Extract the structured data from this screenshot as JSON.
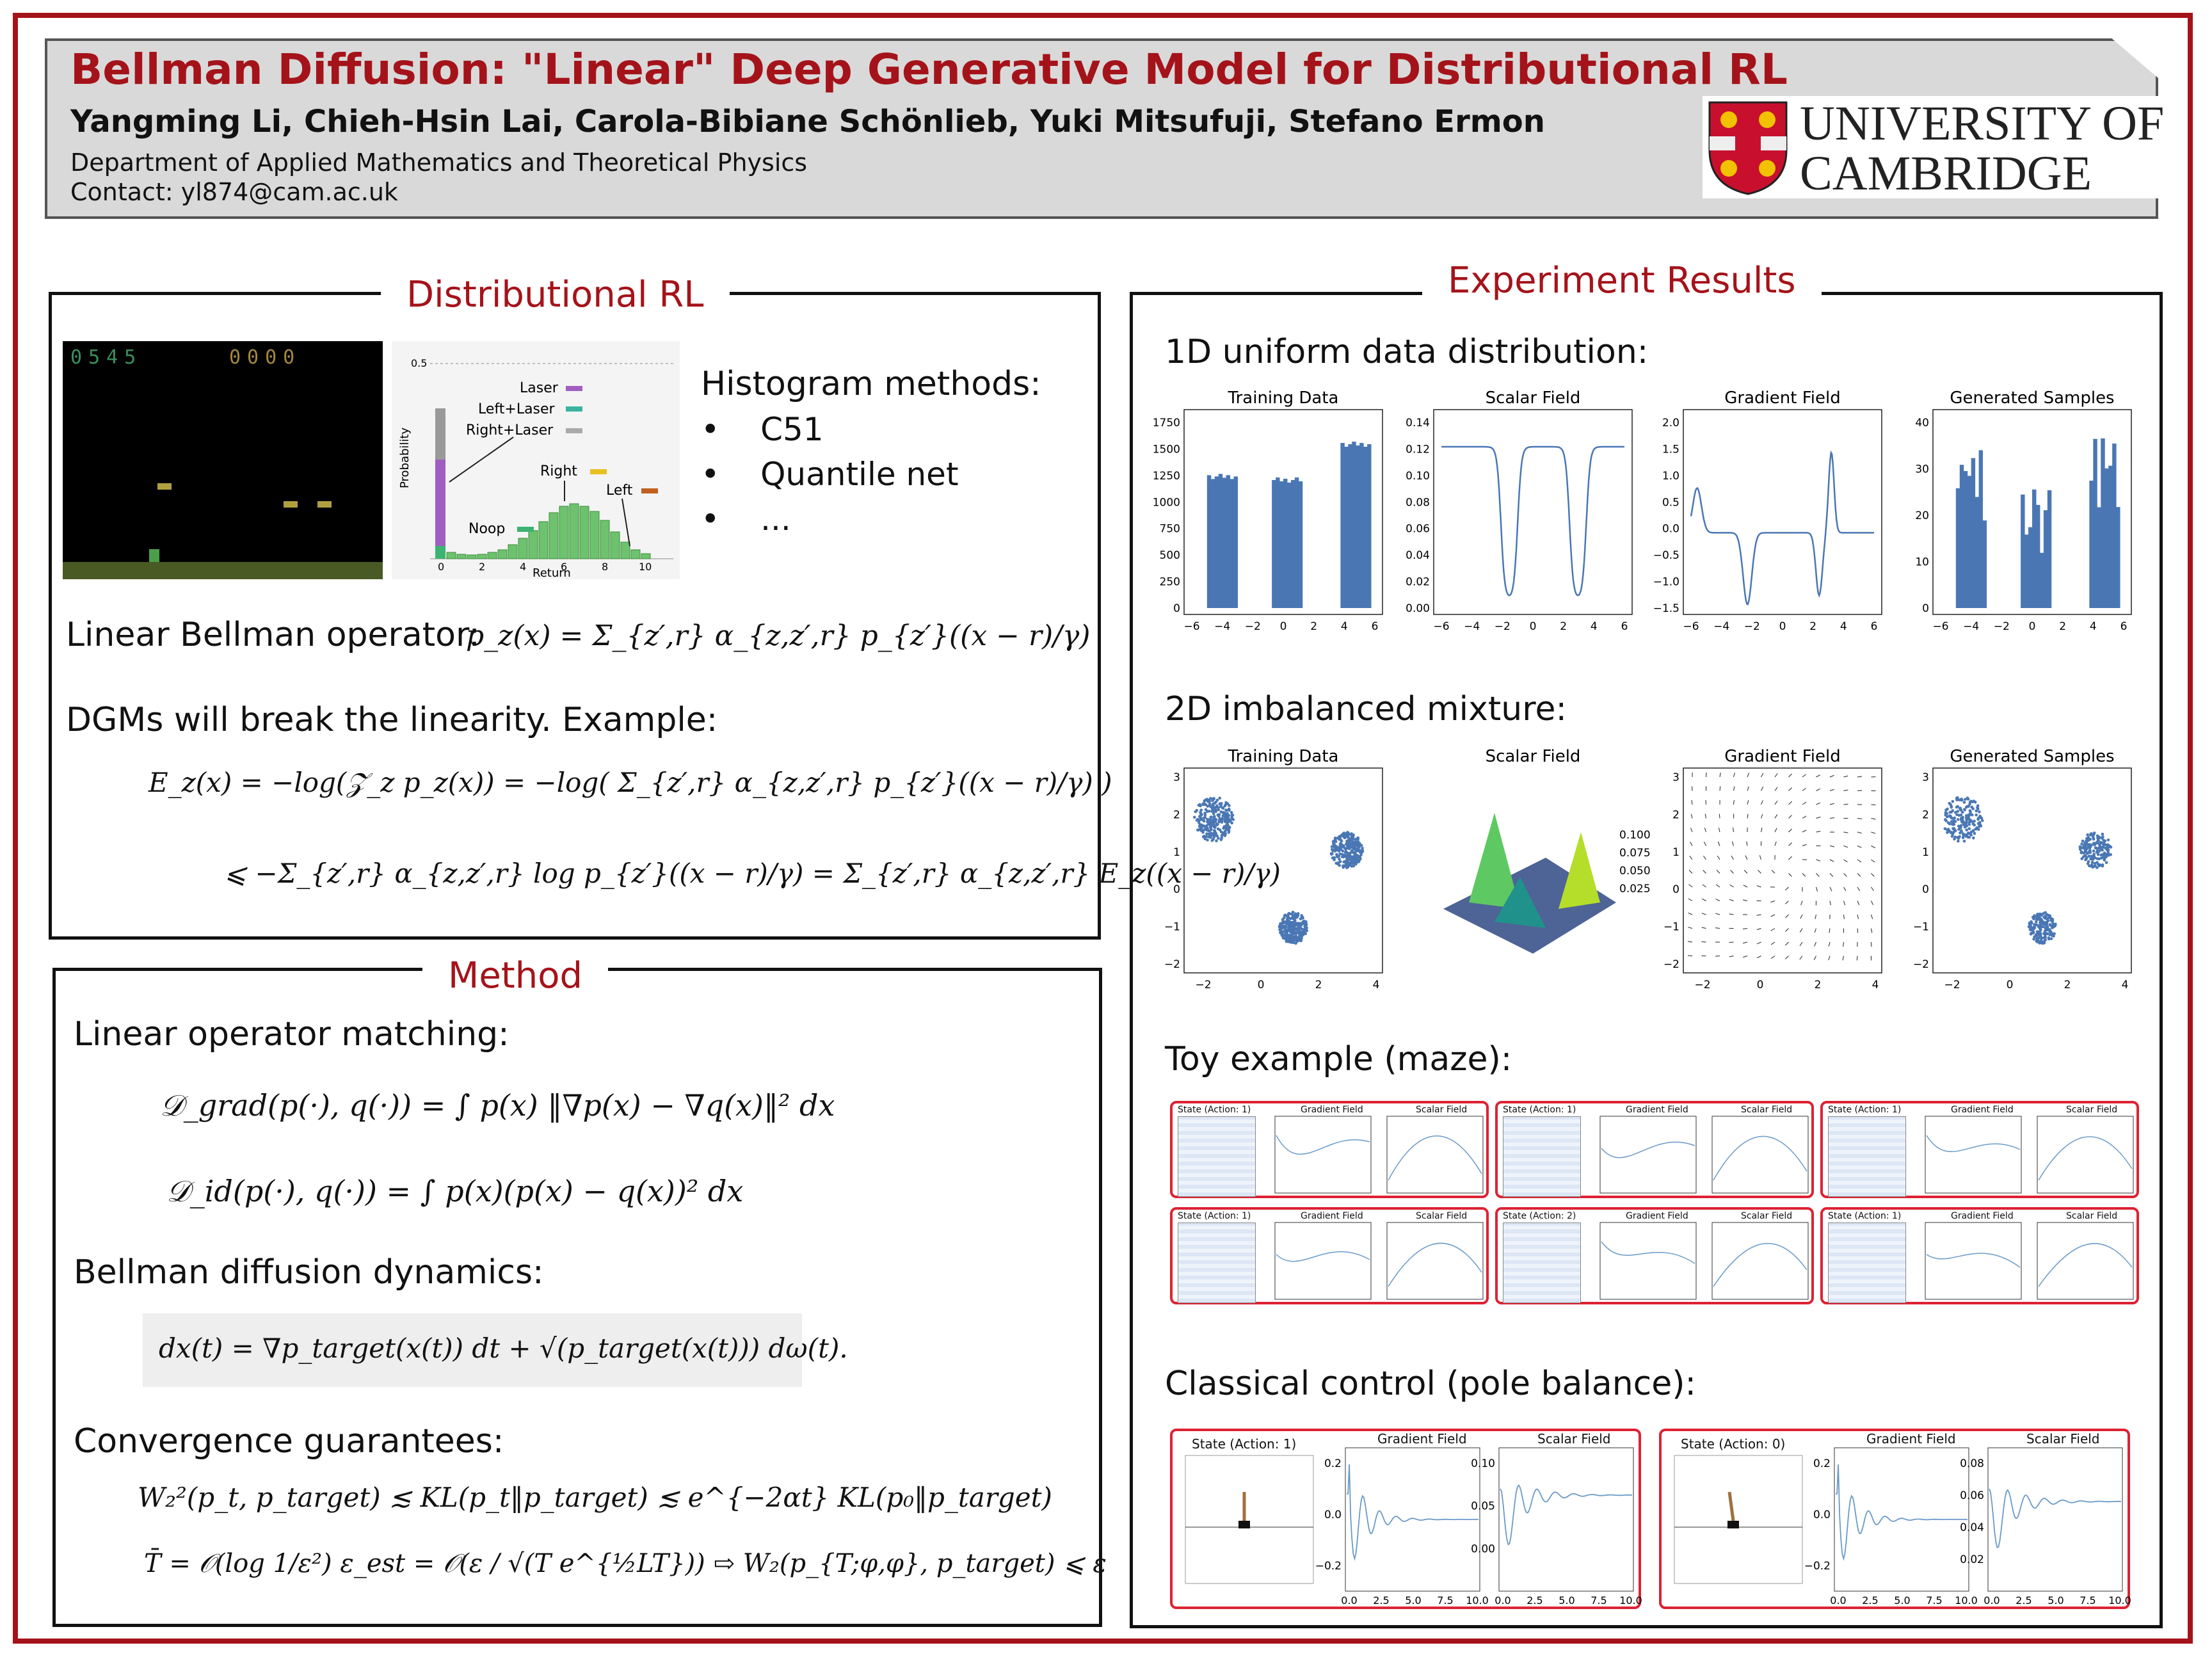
{
  "header": {
    "title": "Bellman Diffusion: \"Linear\" Deep Generative Model for Distributional RL",
    "authors": "Yangming Li, Chieh-Hsin Lai, Carola-Bibiane Schönlieb, Yuki Mitsufuji, Stefano Ermon",
    "department": "Department of Applied Mathematics and Theoretical Physics",
    "contact": "Contact: yl874@cam.ac.uk",
    "logo_line1": "UNIVERSITY OF",
    "logo_line2": "CAMBRIDGE"
  },
  "distributional_rl": {
    "heading": "Distributional RL",
    "game_score_left": "0545",
    "game_score_right": "0000",
    "hist_legend": [
      "Laser",
      "Left+Laser",
      "Right+Laser",
      "Right",
      "Left",
      "Noop"
    ],
    "hist_ylabel": "Probability",
    "hist_xlabel": "Return",
    "hist_ytick": "0.5",
    "hist_xticks": [
      "0",
      "2",
      "4",
      "6",
      "8",
      "10"
    ],
    "histogram_methods_title": "Histogram methods:",
    "bullets": [
      "C51",
      "Quantile net",
      "..."
    ],
    "linear_label": "Linear Bellman operator:",
    "linear_eq": "p_z(x) = Σ_{z′,r} α_{z,z′,r} p_{z′}((x − r)/γ)",
    "dgm_label": "DGMs will break the linearity. Example:",
    "dgm_eq1": "E_z(x) = −log(𝒵_z p_z(x)) = −log( Σ_{z′,r} α_{z,z′,r} p_{z′}((x − r)/γ) )",
    "dgm_eq2": "⩽ −Σ_{z′,r} α_{z,z′,r} log p_{z′}((x − r)/γ) = Σ_{z′,r} α_{z,z′,r} E_z((x − r)/γ)"
  },
  "method": {
    "heading": "Method",
    "op_label": "Linear operator matching:",
    "op_eq1": "𝒟_grad(p(·), q(·)) = ∫ p(x) ‖∇p(x) − ∇q(x)‖² dx",
    "op_eq2": "𝒟_id(p(·), q(·)) = ∫ p(x)(p(x) − q(x))² dx",
    "dyn_label": "Bellman diffusion dynamics:",
    "dyn_eq": "dx(t) = ∇p_target(x(t)) dt + √(p_target(x(t))) dω(t).",
    "conv_label": "Convergence guarantees:",
    "conv_eq1": "W₂²(p_t, p_target) ≲ KL(p_t‖p_target) ≲ e^{−2αt} KL(p₀‖p_target)",
    "conv_eq2": "T̄ = 𝒪(log 1/ε²)  ε_est = 𝒪(ε / √(T e^{½LT}))  ⇨  W₂(p_{T;φ,φ}, p_target) ⩽ ε"
  },
  "experiments": {
    "heading": "Experiment Results",
    "uniform_title": "1D uniform data distribution:",
    "uniform_plots": [
      "Training Data",
      "Scalar Field",
      "Gradient Field",
      "Generated Samples"
    ],
    "uniform_yticks": [
      [
        "0",
        "250",
        "500",
        "750",
        "1000",
        "1250",
        "1500",
        "1750"
      ],
      [
        "0.00",
        "0.02",
        "0.04",
        "0.06",
        "0.08",
        "0.10",
        "0.12",
        "0.14"
      ],
      [
        "−1.5",
        "−1.0",
        "−0.5",
        "0.0",
        "0.5",
        "1.0",
        "1.5",
        "2.0"
      ],
      [
        "0",
        "10",
        "20",
        "30",
        "40"
      ]
    ],
    "uniform_xticks": [
      "−6",
      "−4",
      "−2",
      "0",
      "2",
      "4",
      "6"
    ],
    "mixture_title": "2D imbalanced mixture:",
    "mixture_plots": [
      "Training Data",
      "Scalar Field",
      "Gradient Field",
      "Generated Samples"
    ],
    "mixture_yticks": [
      "−2",
      "−1",
      "0",
      "1",
      "2",
      "3"
    ],
    "mixture_xticks": [
      "−2",
      "0",
      "2",
      "4"
    ],
    "surface_zticks": [
      "0.100",
      "0.075",
      "0.050",
      "0.025"
    ],
    "maze_title": "Toy example (maze):",
    "maze_panels": [
      {
        "state": "State (Action: 1)"
      },
      {
        "state": "State (Action: 1)"
      },
      {
        "state": "State (Action: 1)"
      },
      {
        "state": "State (Action: 1)"
      },
      {
        "state": "State (Action: 2)"
      },
      {
        "state": "State (Action: 1)"
      }
    ],
    "maze_grad_label": "Gradient Field",
    "maze_scalar_label": "Scalar Field",
    "pole_title": "Classical control (pole balance):",
    "pole_panels": [
      {
        "state": "State (Action: 1)",
        "grad_yticks": [
          "0.2",
          "0.0",
          "−0.2"
        ],
        "scalar_yticks": [
          "0.10",
          "0.05",
          "0.00"
        ]
      },
      {
        "state": "State (Action: 0)",
        "grad_yticks": [
          "0.2",
          "0.0",
          "−0.2"
        ],
        "scalar_yticks": [
          "0.08",
          "0.06",
          "0.04",
          "0.02"
        ]
      }
    ],
    "pole_xticks": [
      "0.0",
      "2.5",
      "5.0",
      "7.5",
      "10.0"
    ],
    "pole_grad_label": "Gradient Field",
    "pole_scalar_label": "Scalar Field"
  },
  "colors": {
    "accent": "#a5131a",
    "plot_blue": "#4a77b4"
  }
}
